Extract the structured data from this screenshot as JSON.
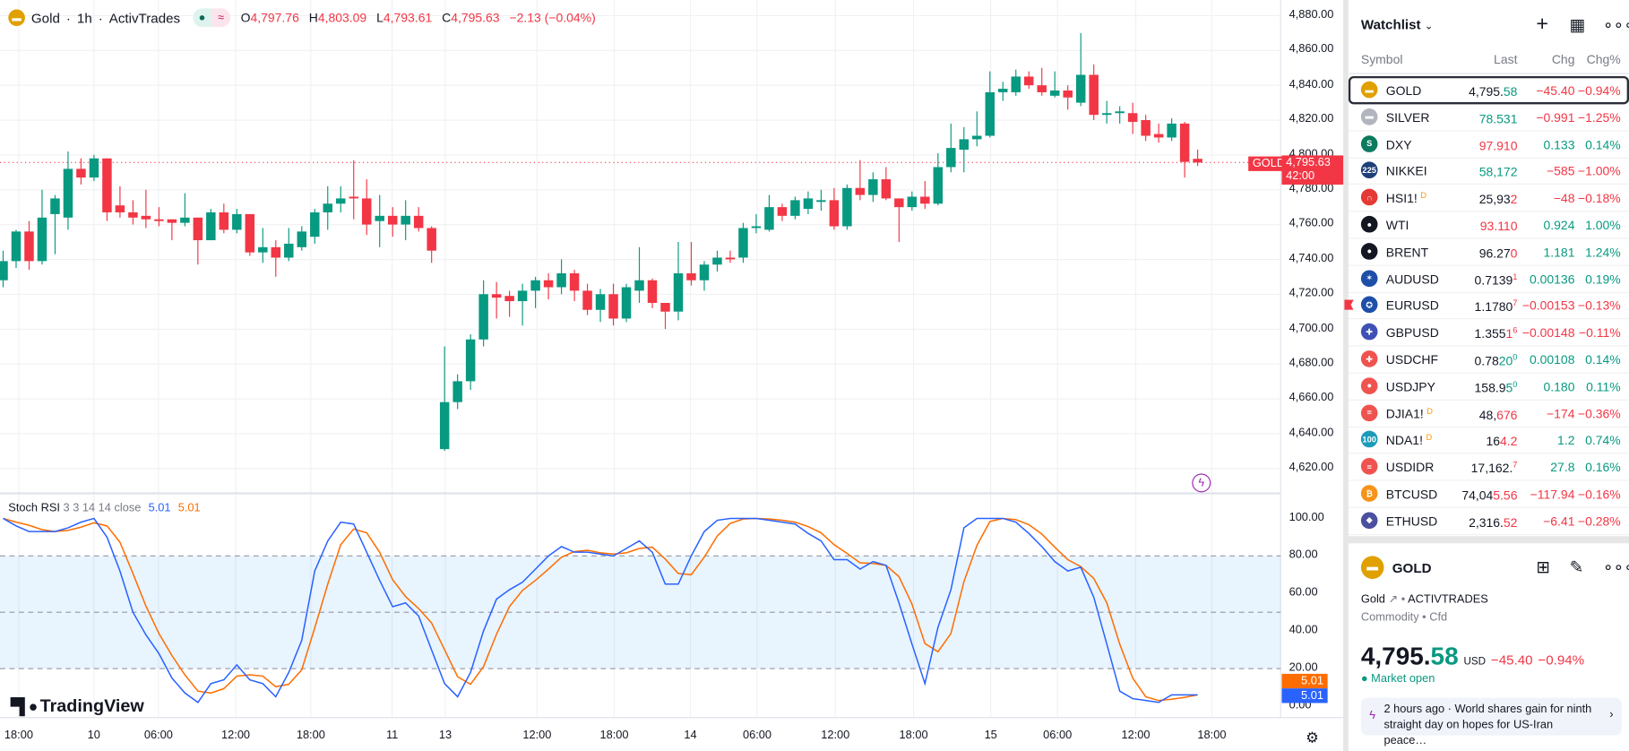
{
  "header": {
    "symbol": "Gold",
    "interval": "1h",
    "broker": "ActivTrades",
    "sep": "·",
    "o_label": "O",
    "o": "4,797.76",
    "h_label": "H",
    "h": "4,803.09",
    "l_label": "L",
    "l": "4,793.61",
    "c_label": "C",
    "c": "4,795.63",
    "change": "−2.13 (−0.04%)"
  },
  "price_axis": [
    "4,880.00",
    "4,860.00",
    "4,840.00",
    "4,820.00",
    "4,800.00",
    "4,780.00",
    "4,760.00",
    "4,740.00",
    "4,720.00",
    "4,700.00",
    "4,680.00",
    "4,660.00",
    "4,640.00",
    "4,620.00"
  ],
  "price_tag": {
    "symbol": "GOLD",
    "price": "4,795.63",
    "countdown": "42:00"
  },
  "time_axis": [
    "18:00",
    "10",
    "06:00",
    "12:00",
    "18:00",
    "11",
    "13",
    "12:00",
    "18:00",
    "14",
    "06:00",
    "12:00",
    "18:00",
    "15",
    "06:00",
    "12:00",
    "18:00"
  ],
  "rsi": {
    "title": "Stoch RSI",
    "params": "3 3 14 14 close",
    "k_value": "5.01",
    "d_value": "5.01",
    "axis": [
      "100.00",
      "80.00",
      "60.00",
      "40.00",
      "20.00",
      "0.00"
    ],
    "k_color": "#2962ff",
    "d_color": "#ff6d00"
  },
  "logo": "TradingView",
  "colors": {
    "up": "#089981",
    "down": "#f23645"
  },
  "chart_data": {
    "type": "candlestick",
    "ylim": [
      4610,
      4890
    ],
    "candles": [
      [
        4728,
        4745,
        4724,
        4739
      ],
      [
        4739,
        4757,
        4735,
        4756
      ],
      [
        4756,
        4762,
        4734,
        4739
      ],
      [
        4739,
        4780,
        4737,
        4764
      ],
      [
        4766,
        4777,
        4743,
        4775
      ],
      [
        4764,
        4802,
        4757,
        4792
      ],
      [
        4792,
        4798,
        4783,
        4787
      ],
      [
        4787,
        4800,
        4785,
        4798
      ],
      [
        4798,
        4798,
        4762,
        4767
      ],
      [
        4771,
        4782,
        4764,
        4767
      ],
      [
        4767,
        4774,
        4760,
        4764
      ],
      [
        4765,
        4780,
        4758,
        4763
      ],
      [
        4763,
        4770,
        4759,
        4762
      ],
      [
        4763,
        4763,
        4751,
        4761
      ],
      [
        4761,
        4778,
        4759,
        4764
      ],
      [
        4764,
        4764,
        4737,
        4751
      ],
      [
        4751,
        4769,
        4751,
        4767
      ],
      [
        4767,
        4772,
        4755,
        4757
      ],
      [
        4757,
        4769,
        4755,
        4766
      ],
      [
        4766,
        4766,
        4742,
        4744
      ],
      [
        4744,
        4758,
        4738,
        4747
      ],
      [
        4747,
        4751,
        4730,
        4741
      ],
      [
        4741,
        4758,
        4739,
        4749
      ],
      [
        4747,
        4759,
        4745,
        4756
      ],
      [
        4753,
        4769,
        4749,
        4767
      ],
      [
        4767,
        4782,
        4757,
        4772
      ],
      [
        4772,
        4782,
        4767,
        4775
      ],
      [
        4776,
        4797,
        4763,
        4775
      ],
      [
        4775,
        4786,
        4754,
        4760
      ],
      [
        4762,
        4777,
        4747,
        4765
      ],
      [
        4765,
        4770,
        4753,
        4760
      ],
      [
        4760,
        4774,
        4751,
        4765
      ],
      [
        4765,
        4770,
        4756,
        4758
      ],
      [
        4758,
        4759,
        4738,
        4745
      ],
      [
        4631,
        4690,
        4630,
        4658
      ],
      [
        4658,
        4674,
        4654,
        4670
      ],
      [
        4670,
        4697,
        4665,
        4694
      ],
      [
        4694,
        4728,
        4690,
        4720
      ],
      [
        4720,
        4727,
        4706,
        4718
      ],
      [
        4719,
        4722,
        4707,
        4716
      ],
      [
        4716,
        4726,
        4702,
        4722
      ],
      [
        4722,
        4730,
        4712,
        4728
      ],
      [
        4728,
        4732,
        4717,
        4724
      ],
      [
        4724,
        4740,
        4720,
        4732
      ],
      [
        4732,
        4734,
        4716,
        4722
      ],
      [
        4722,
        4726,
        4708,
        4711
      ],
      [
        4711,
        4723,
        4704,
        4720
      ],
      [
        4720,
        4726,
        4702,
        4706
      ],
      [
        4706,
        4726,
        4704,
        4724
      ],
      [
        4722,
        4747,
        4715,
        4728
      ],
      [
        4728,
        4729,
        4712,
        4715
      ],
      [
        4715,
        4715,
        4700,
        4710
      ],
      [
        4710,
        4750,
        4705,
        4732
      ],
      [
        4732,
        4750,
        4725,
        4728
      ],
      [
        4728,
        4739,
        4722,
        4737
      ],
      [
        4737,
        4745,
        4733,
        4741
      ],
      [
        4741,
        4745,
        4738,
        4740
      ],
      [
        4741,
        4761,
        4738,
        4758
      ],
      [
        4758,
        4766,
        4755,
        4759
      ],
      [
        4757,
        4777,
        4756,
        4770
      ],
      [
        4770,
        4772,
        4762,
        4765
      ],
      [
        4765,
        4776,
        4763,
        4774
      ],
      [
        4769,
        4779,
        4766,
        4775
      ],
      [
        4773,
        4780,
        4768,
        4774
      ],
      [
        4774,
        4781,
        4757,
        4759
      ],
      [
        4759,
        4783,
        4757,
        4781
      ],
      [
        4781,
        4797,
        4774,
        4777
      ],
      [
        4777,
        4790,
        4773,
        4786
      ],
      [
        4786,
        4793,
        4774,
        4775
      ],
      [
        4775,
        4775,
        4750,
        4770
      ],
      [
        4770,
        4779,
        4768,
        4776
      ],
      [
        4776,
        4785,
        4769,
        4772
      ],
      [
        4772,
        4801,
        4771,
        4793
      ],
      [
        4793,
        4818,
        4790,
        4804
      ],
      [
        4803,
        4816,
        4790,
        4809
      ],
      [
        4809,
        4825,
        4805,
        4811
      ],
      [
        4811,
        4848,
        4810,
        4836
      ],
      [
        4836,
        4842,
        4831,
        4838
      ],
      [
        4836,
        4849,
        4834,
        4845
      ],
      [
        4845,
        4848,
        4838,
        4840
      ],
      [
        4840,
        4850,
        4834,
        4836
      ],
      [
        4834,
        4848,
        4833,
        4837
      ],
      [
        4837,
        4840,
        4826,
        4833
      ],
      [
        4830,
        4870,
        4828,
        4846
      ],
      [
        4846,
        4852,
        4820,
        4823
      ],
      [
        4823,
        4831,
        4818,
        4824
      ],
      [
        4824,
        4828,
        4818,
        4825
      ],
      [
        4824,
        4830,
        4812,
        4819
      ],
      [
        4820,
        4823,
        4808,
        4811
      ],
      [
        4812,
        4818,
        4807,
        4810
      ],
      [
        4810,
        4821,
        4808,
        4818
      ],
      [
        4818,
        4819,
        4787,
        4796
      ],
      [
        4797.76,
        4803.09,
        4793.61,
        4795.63
      ]
    ],
    "stoch_k": [
      100,
      96,
      93,
      93,
      93,
      95,
      98,
      100,
      90,
      72,
      50,
      38,
      28,
      15,
      7,
      2,
      12,
      14,
      22,
      14,
      12,
      5,
      18,
      35,
      72,
      88,
      98,
      97,
      82,
      67,
      53,
      55,
      48,
      30,
      12,
      5,
      18,
      40,
      57,
      62,
      66,
      73,
      80,
      85,
      82,
      82,
      81,
      80,
      84,
      88,
      82,
      65,
      65,
      80,
      93,
      99,
      100,
      100,
      100,
      99,
      98,
      97,
      92,
      88,
      78,
      78,
      73,
      77,
      75,
      55,
      33,
      12,
      42,
      62,
      95,
      100,
      100,
      100,
      98,
      92,
      85,
      77,
      72,
      74,
      58,
      33,
      8,
      4,
      3,
      2,
      6,
      6,
      6
    ],
    "rsi_bands": [
      80,
      50,
      20
    ]
  },
  "watchlist": {
    "title": "Watchlist",
    "columns": [
      "Symbol",
      "Last",
      "Chg",
      "Chg%"
    ],
    "rows": [
      {
        "sym": "GOLD",
        "icon": "gold-bar",
        "bg": "#e0a000",
        "glyph": "▬",
        "a": "4,795.",
        "b": "58",
        "bc": "g",
        "sup": "",
        "chg": "−45.40",
        "pct": "−0.94%",
        "dir": "r",
        "sel": true
      },
      {
        "sym": "SILVER",
        "icon": "silver-bar",
        "bg": "#b2b5be",
        "glyph": "▬",
        "a": "",
        "b": "78.531",
        "bc": "g",
        "sup": "",
        "chg": "−0.991",
        "pct": "−1.25%",
        "dir": "r"
      },
      {
        "sym": "DXY",
        "icon": "dollar-index",
        "bg": "#0b7a5e",
        "glyph": "S",
        "a": "",
        "b": "97.910",
        "bc": "r",
        "sup": "",
        "chg": "0.133",
        "pct": "0.14%",
        "dir": "g"
      },
      {
        "sym": "NIKKEI",
        "icon": "nikkei",
        "bg": "#1f3f7a",
        "glyph": "225",
        "a": "",
        "b": "58,172",
        "bc": "g",
        "sup": "",
        "chg": "−585",
        "pct": "−1.00%",
        "dir": "r"
      },
      {
        "sym": "HSI1!",
        "d": "D",
        "icon": "hsi",
        "bg": "#e53935",
        "glyph": "∩",
        "a": "25,93",
        "b": "2",
        "bc": "r",
        "sup": "",
        "chg": "−48",
        "pct": "−0.18%",
        "dir": "r"
      },
      {
        "sym": "WTI",
        "icon": "oil-drop",
        "bg": "#131722",
        "glyph": "●",
        "a": "",
        "b": "93.110",
        "bc": "r",
        "sup": "",
        "chg": "0.924",
        "pct": "1.00%",
        "dir": "g"
      },
      {
        "sym": "BRENT",
        "icon": "oil-drop",
        "bg": "#131722",
        "glyph": "●",
        "a": "96.27",
        "b": "0",
        "bc": "r",
        "sup": "",
        "chg": "1.181",
        "pct": "1.24%",
        "dir": "g"
      },
      {
        "sym": "AUDUSD",
        "icon": "flag-au-us",
        "bg": "#1e4fa8",
        "glyph": "✶",
        "a": "0.7139",
        "b": "",
        "bc": "r",
        "sup": "1",
        "chg": "0.00136",
        "pct": "0.19%",
        "dir": "g"
      },
      {
        "sym": "EURUSD",
        "icon": "flag-eu-us",
        "bg": "#1e4fa8",
        "glyph": "✪",
        "a": "1.1780",
        "b": "",
        "bc": "r",
        "sup": "7",
        "chg": "−0.00153",
        "pct": "−0.13%",
        "dir": "r"
      },
      {
        "sym": "GBPUSD",
        "icon": "flag-gb-us",
        "bg": "#3f51b5",
        "glyph": "✚",
        "a": "1.355",
        "b": "1",
        "bc": "r",
        "sup": "6",
        "chg": "−0.00148",
        "pct": "−0.11%",
        "dir": "r"
      },
      {
        "sym": "USDCHF",
        "icon": "flag-us-ch",
        "bg": "#ef5350",
        "glyph": "✚",
        "a": "0.78",
        "b": "20",
        "bc": "g",
        "sup": "0",
        "chg": "0.00108",
        "pct": "0.14%",
        "dir": "g"
      },
      {
        "sym": "USDJPY",
        "icon": "flag-us-jp",
        "bg": "#ef5350",
        "glyph": "●",
        "a": "158.9",
        "b": "5",
        "bc": "g",
        "sup": "0",
        "chg": "0.180",
        "pct": "0.11%",
        "dir": "g"
      },
      {
        "sym": "DJIA1!",
        "d": "D",
        "icon": "flag-us",
        "bg": "#ef5350",
        "glyph": "≡",
        "a": "48,",
        "b": "676",
        "bc": "r",
        "sup": "",
        "chg": "−174",
        "pct": "−0.36%",
        "dir": "r"
      },
      {
        "sym": "NDA1!",
        "d": "D",
        "icon": "nasdaq-100",
        "bg": "#1a9bb8",
        "glyph": "100",
        "a": "16",
        "b": "4.2",
        "bc": "r",
        "sup": "",
        "chg": "1.2",
        "pct": "0.74%",
        "dir": "g"
      },
      {
        "sym": "USDIDR",
        "icon": "flag-us-id",
        "bg": "#ef5350",
        "glyph": "≡",
        "a": "17,162.",
        "b": "",
        "bc": "r",
        "sup": "7",
        "chg": "27.8",
        "pct": "0.16%",
        "dir": "g"
      },
      {
        "sym": "BTCUSD",
        "icon": "bitcoin",
        "bg": "#f7931a",
        "glyph": "₿",
        "a": "74,04",
        "b": "5.56",
        "bc": "r",
        "sup": "",
        "chg": "−117.94",
        "pct": "−0.16%",
        "dir": "r"
      },
      {
        "sym": "ETHUSD",
        "icon": "ethereum",
        "bg": "#4a4f9e",
        "glyph": "◆",
        "a": "2,316.",
        "b": "52",
        "bc": "r",
        "sup": "",
        "chg": "−6.41",
        "pct": "−0.28%",
        "dir": "r"
      }
    ]
  },
  "details": {
    "symbol": "GOLD",
    "name": "Gold",
    "exchange": "ACTIVTRADES",
    "type": "Commodity",
    "subtype": "Cfd",
    "price_a": "4,795.",
    "price_b": "58",
    "currency": "USD",
    "change": "−45.40",
    "change_pct": "−0.94%",
    "status": "Market open",
    "news_time": "2 hours ago",
    "news_sep": "·",
    "news_text": "World shares gain for ninth straight day on hopes for US-Iran peace…"
  }
}
